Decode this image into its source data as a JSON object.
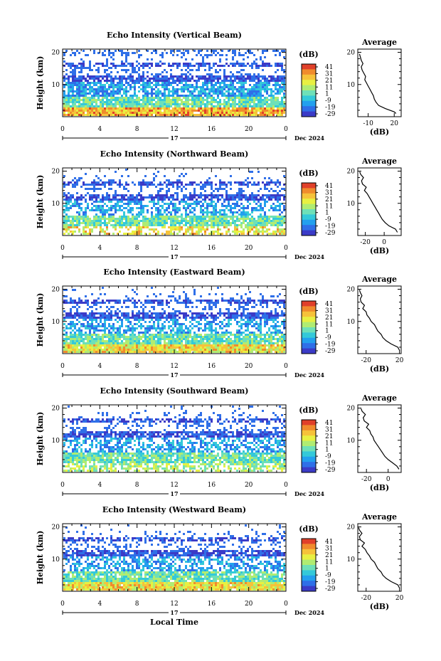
{
  "chart_data": [
    {
      "type": "heatmap",
      "title": "Echo Intensity (Vertical Beam)",
      "ylabel": "Height (km)",
      "x_ticks": [
        "0",
        "4",
        "8",
        "12",
        "16",
        "20",
        "0"
      ],
      "y_ticks": [
        "20",
        "10"
      ],
      "day_label": "17",
      "date_label": "Dec 2024",
      "colorbar_title": "(dB)",
      "colorbar_ticks": [
        "41",
        "31",
        "21",
        "11",
        "1",
        "-9",
        "-19",
        "-29"
      ],
      "avg_title": "Average",
      "avg_xticks": [
        "-10",
        "20"
      ],
      "avg_yticks": [
        "20",
        "10"
      ],
      "avg_xlabel": "(dB)",
      "avg_xlim": [
        -22,
        28
      ],
      "avg_profile": [
        [
          22,
          1
        ],
        [
          20,
          1.5
        ],
        [
          10,
          2.5
        ],
        [
          2,
          3.5
        ],
        [
          -1,
          4.5
        ],
        [
          -3,
          5.5
        ],
        [
          -4,
          6.5
        ],
        [
          -6,
          7.5
        ],
        [
          -8,
          8.5
        ],
        [
          -10,
          9.5
        ],
        [
          -12,
          10.5
        ],
        [
          -14,
          11.5
        ],
        [
          -13,
          12.5
        ],
        [
          -15,
          13.5
        ],
        [
          -17,
          14.5
        ],
        [
          -18,
          15.5
        ],
        [
          -16,
          16.5
        ],
        [
          -18,
          17.5
        ],
        [
          -19,
          18.5
        ],
        [
          -20,
          19.5
        ]
      ]
    },
    {
      "type": "heatmap",
      "title": "Echo Intensity (Northward Beam)",
      "ylabel": "Height (km)",
      "x_ticks": [
        "0",
        "4",
        "8",
        "12",
        "16",
        "20",
        "0"
      ],
      "y_ticks": [
        "20",
        "10"
      ],
      "day_label": "17",
      "date_label": "Dec 2024",
      "colorbar_title": "(dB)",
      "colorbar_ticks": [
        "41",
        "31",
        "21",
        "11",
        "1",
        "-9",
        "-19",
        "-29"
      ],
      "avg_title": "Average",
      "avg_xticks": [
        "-20",
        "0"
      ],
      "avg_yticks": [
        "20",
        "10"
      ],
      "avg_xlabel": "(dB)",
      "avg_xlim": [
        -28,
        18
      ],
      "avg_profile": [
        [
          14,
          1
        ],
        [
          12,
          2
        ],
        [
          5,
          3
        ],
        [
          1,
          4
        ],
        [
          -2,
          5
        ],
        [
          -4,
          6
        ],
        [
          -6,
          7
        ],
        [
          -8,
          8
        ],
        [
          -10,
          9
        ],
        [
          -12,
          10
        ],
        [
          -14,
          11
        ],
        [
          -16,
          12
        ],
        [
          -18,
          13
        ],
        [
          -21,
          14
        ],
        [
          -19,
          15
        ],
        [
          -23,
          16
        ],
        [
          -24,
          17
        ],
        [
          -22,
          18
        ],
        [
          -25,
          19
        ],
        [
          -26,
          19.8
        ]
      ]
    },
    {
      "type": "heatmap",
      "title": "Echo Intensity (Eastward Beam)",
      "ylabel": "Height (km)",
      "x_ticks": [
        "0",
        "4",
        "8",
        "12",
        "16",
        "20",
        "0"
      ],
      "y_ticks": [
        "20",
        "10"
      ],
      "day_label": "17",
      "date_label": "Dec 2024",
      "colorbar_title": "(dB)",
      "colorbar_ticks": [
        "41",
        "31",
        "21",
        "11",
        "1",
        "-9",
        "-19",
        "-29"
      ],
      "avg_title": "Average",
      "avg_xticks": [
        "-20",
        "20"
      ],
      "avg_yticks": [
        "20",
        "10"
      ],
      "avg_xlabel": "(dB)",
      "avg_xlim": [
        -30,
        22
      ],
      "avg_profile": [
        [
          20,
          1
        ],
        [
          18,
          2
        ],
        [
          10,
          3
        ],
        [
          4,
          4
        ],
        [
          0,
          5
        ],
        [
          -2,
          6
        ],
        [
          -6,
          7
        ],
        [
          -8,
          8
        ],
        [
          -10,
          9
        ],
        [
          -14,
          10
        ],
        [
          -16,
          11
        ],
        [
          -19,
          12
        ],
        [
          -20,
          13
        ],
        [
          -24,
          14
        ],
        [
          -22,
          15
        ],
        [
          -26,
          16
        ],
        [
          -27,
          17
        ],
        [
          -25,
          18
        ],
        [
          -27,
          19
        ],
        [
          -28,
          19.8
        ]
      ]
    },
    {
      "type": "heatmap",
      "title": "Echo Intensity (Southward Beam)",
      "ylabel": "Height (km)",
      "x_ticks": [
        "0",
        "4",
        "8",
        "12",
        "16",
        "20",
        "0"
      ],
      "y_ticks": [
        "20",
        "10"
      ],
      "day_label": "17",
      "date_label": "Dec 2024",
      "colorbar_title": "(dB)",
      "colorbar_ticks": [
        "41",
        "31",
        "21",
        "11",
        "1",
        "-9",
        "-19",
        "-29"
      ],
      "avg_title": "Average",
      "avg_xticks": [
        "-20",
        "0"
      ],
      "avg_yticks": [
        "20",
        "10"
      ],
      "avg_xlabel": "(dB)",
      "avg_xlim": [
        -28,
        12
      ],
      "avg_profile": [
        [
          10,
          1
        ],
        [
          8,
          2
        ],
        [
          4,
          3
        ],
        [
          0,
          4
        ],
        [
          -3,
          5
        ],
        [
          -5,
          6
        ],
        [
          -7,
          7
        ],
        [
          -9,
          8
        ],
        [
          -11,
          9
        ],
        [
          -13,
          10
        ],
        [
          -14,
          11
        ],
        [
          -16,
          12
        ],
        [
          -17,
          13
        ],
        [
          -20,
          14
        ],
        [
          -18,
          15
        ],
        [
          -22,
          16
        ],
        [
          -23,
          17
        ],
        [
          -21,
          18
        ],
        [
          -24,
          19
        ],
        [
          -25,
          19.8
        ]
      ]
    },
    {
      "type": "heatmap",
      "title": "Echo Intensity (Westward Beam)",
      "ylabel": "Height (km)",
      "x_ticks": [
        "0",
        "4",
        "8",
        "12",
        "16",
        "20",
        "0"
      ],
      "y_ticks": [
        "20",
        "10"
      ],
      "day_label": "17",
      "date_label": "Dec 2024",
      "colorbar_title": "(dB)",
      "colorbar_ticks": [
        "41",
        "31",
        "21",
        "11",
        "1",
        "-9",
        "-19",
        "-29"
      ],
      "avg_title": "Average",
      "avg_xticks": [
        "-20",
        "20"
      ],
      "avg_yticks": [
        "20",
        "10"
      ],
      "avg_xlabel": "(dB)",
      "avg_xlim": [
        -30,
        22
      ],
      "avg_profile": [
        [
          20,
          1
        ],
        [
          18,
          2
        ],
        [
          10,
          3
        ],
        [
          4,
          4
        ],
        [
          0,
          5
        ],
        [
          -2,
          6
        ],
        [
          -6,
          7
        ],
        [
          -8,
          8
        ],
        [
          -10,
          9
        ],
        [
          -14,
          10
        ],
        [
          -16,
          11
        ],
        [
          -19,
          12
        ],
        [
          -21,
          13
        ],
        [
          -25,
          14
        ],
        [
          -22,
          15
        ],
        [
          -27,
          16
        ],
        [
          -28,
          17
        ],
        [
          -25,
          18
        ],
        [
          -28,
          19
        ],
        [
          -29,
          19.8
        ]
      ]
    }
  ],
  "xlabel": "Local Time",
  "colors": [
    "#3b3bc7",
    "#2f6fe8",
    "#23a0ee",
    "#34c9d9",
    "#6ee0b8",
    "#b0ec72",
    "#e8f042",
    "#f6c23a",
    "#f08b2d",
    "#e0402a"
  ]
}
